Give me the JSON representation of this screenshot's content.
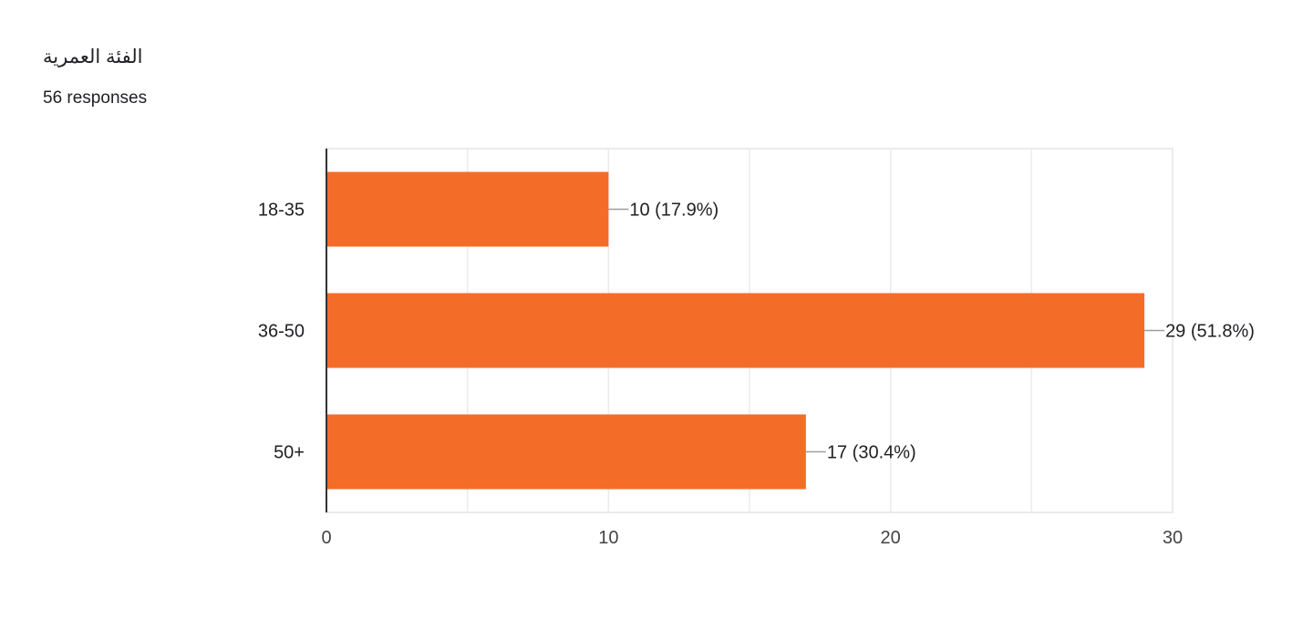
{
  "question": {
    "title": "الفئة العمرية",
    "responses": "56 responses"
  },
  "colors": {
    "bar": "#f46d28",
    "grid": "#ebebeb",
    "axis": "#333333",
    "leader": "#9e9e9e"
  },
  "chart_data": {
    "type": "bar",
    "orientation": "horizontal",
    "categories": [
      "18-35",
      "36-50",
      "50+"
    ],
    "values": [
      10,
      29,
      17
    ],
    "data_labels": [
      "10 (17.9%)",
      "29 (51.8%)",
      "17 (30.4%)"
    ],
    "xlim": [
      0,
      30
    ],
    "xticks": [
      0,
      10,
      20,
      30
    ],
    "grid": true
  }
}
